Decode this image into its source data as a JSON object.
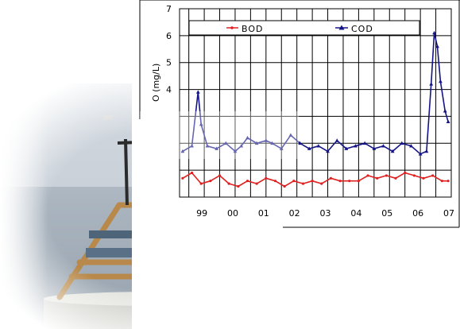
{
  "colors": {
    "bod": "#e02020",
    "cod": "#141488",
    "grid": "#000000",
    "sea": "#a9b4bf",
    "buoy_frame": "#b8894a",
    "buoy_hull": "#cfcfcb"
  },
  "chart_data": {
    "type": "line",
    "title": "",
    "xlabel": "",
    "ylabel": "O (mg/L)",
    "y_tick_labels": [
      "7",
      "6",
      "5",
      "4"
    ],
    "x_tick_labels": [
      "99",
      "00",
      "01",
      "02",
      "03",
      "04",
      "05",
      "06",
      "07"
    ],
    "xlim": [
      1998.2,
      2007.0
    ],
    "ylim": [
      0,
      7
    ],
    "grid": true,
    "legend_position": "top",
    "legend": [
      "BOD",
      "COD"
    ],
    "series": [
      {
        "name": "BOD",
        "marker": "dot",
        "x": [
          1998.3,
          1998.6,
          1998.9,
          1999.2,
          1999.5,
          1999.8,
          2000.1,
          2000.4,
          2000.7,
          2001.0,
          2001.3,
          2001.6,
          2001.9,
          2002.2,
          2002.5,
          2002.8,
          2003.1,
          2003.4,
          2003.7,
          2004.0,
          2004.3,
          2004.6,
          2004.9,
          2005.2,
          2005.5,
          2005.8,
          2006.1,
          2006.4,
          2006.7,
          2006.9
        ],
        "values": [
          0.7,
          0.9,
          0.5,
          0.6,
          0.8,
          0.5,
          0.4,
          0.6,
          0.5,
          0.7,
          0.6,
          0.4,
          0.6,
          0.5,
          0.6,
          0.5,
          0.7,
          0.6,
          0.6,
          0.6,
          0.8,
          0.7,
          0.8,
          0.7,
          0.9,
          0.8,
          0.7,
          0.8,
          0.6,
          0.6
        ]
      },
      {
        "name": "COD",
        "marker": "triangle",
        "x": [
          1998.3,
          1998.6,
          1998.8,
          1998.9,
          1999.1,
          1999.4,
          1999.7,
          2000.0,
          2000.2,
          2000.4,
          2000.7,
          2001.0,
          2001.2,
          2001.5,
          2001.8,
          2002.1,
          2002.4,
          2002.7,
          2003.0,
          2003.3,
          2003.6,
          2003.9,
          2004.2,
          2004.5,
          2004.8,
          2005.1,
          2005.4,
          2005.7,
          2006.0,
          2006.2,
          2006.35,
          2006.45,
          2006.55,
          2006.65,
          2006.8,
          2006.9
        ],
        "values": [
          1.7,
          1.9,
          3.9,
          2.7,
          1.9,
          1.8,
          2.0,
          1.7,
          1.9,
          2.2,
          2.0,
          2.1,
          2.0,
          1.8,
          2.3,
          2.0,
          1.8,
          1.9,
          1.7,
          2.1,
          1.8,
          1.9,
          2.0,
          1.8,
          1.9,
          1.7,
          2.0,
          1.9,
          1.6,
          1.7,
          4.2,
          6.1,
          5.6,
          4.3,
          3.2,
          2.8
        ]
      }
    ]
  }
}
